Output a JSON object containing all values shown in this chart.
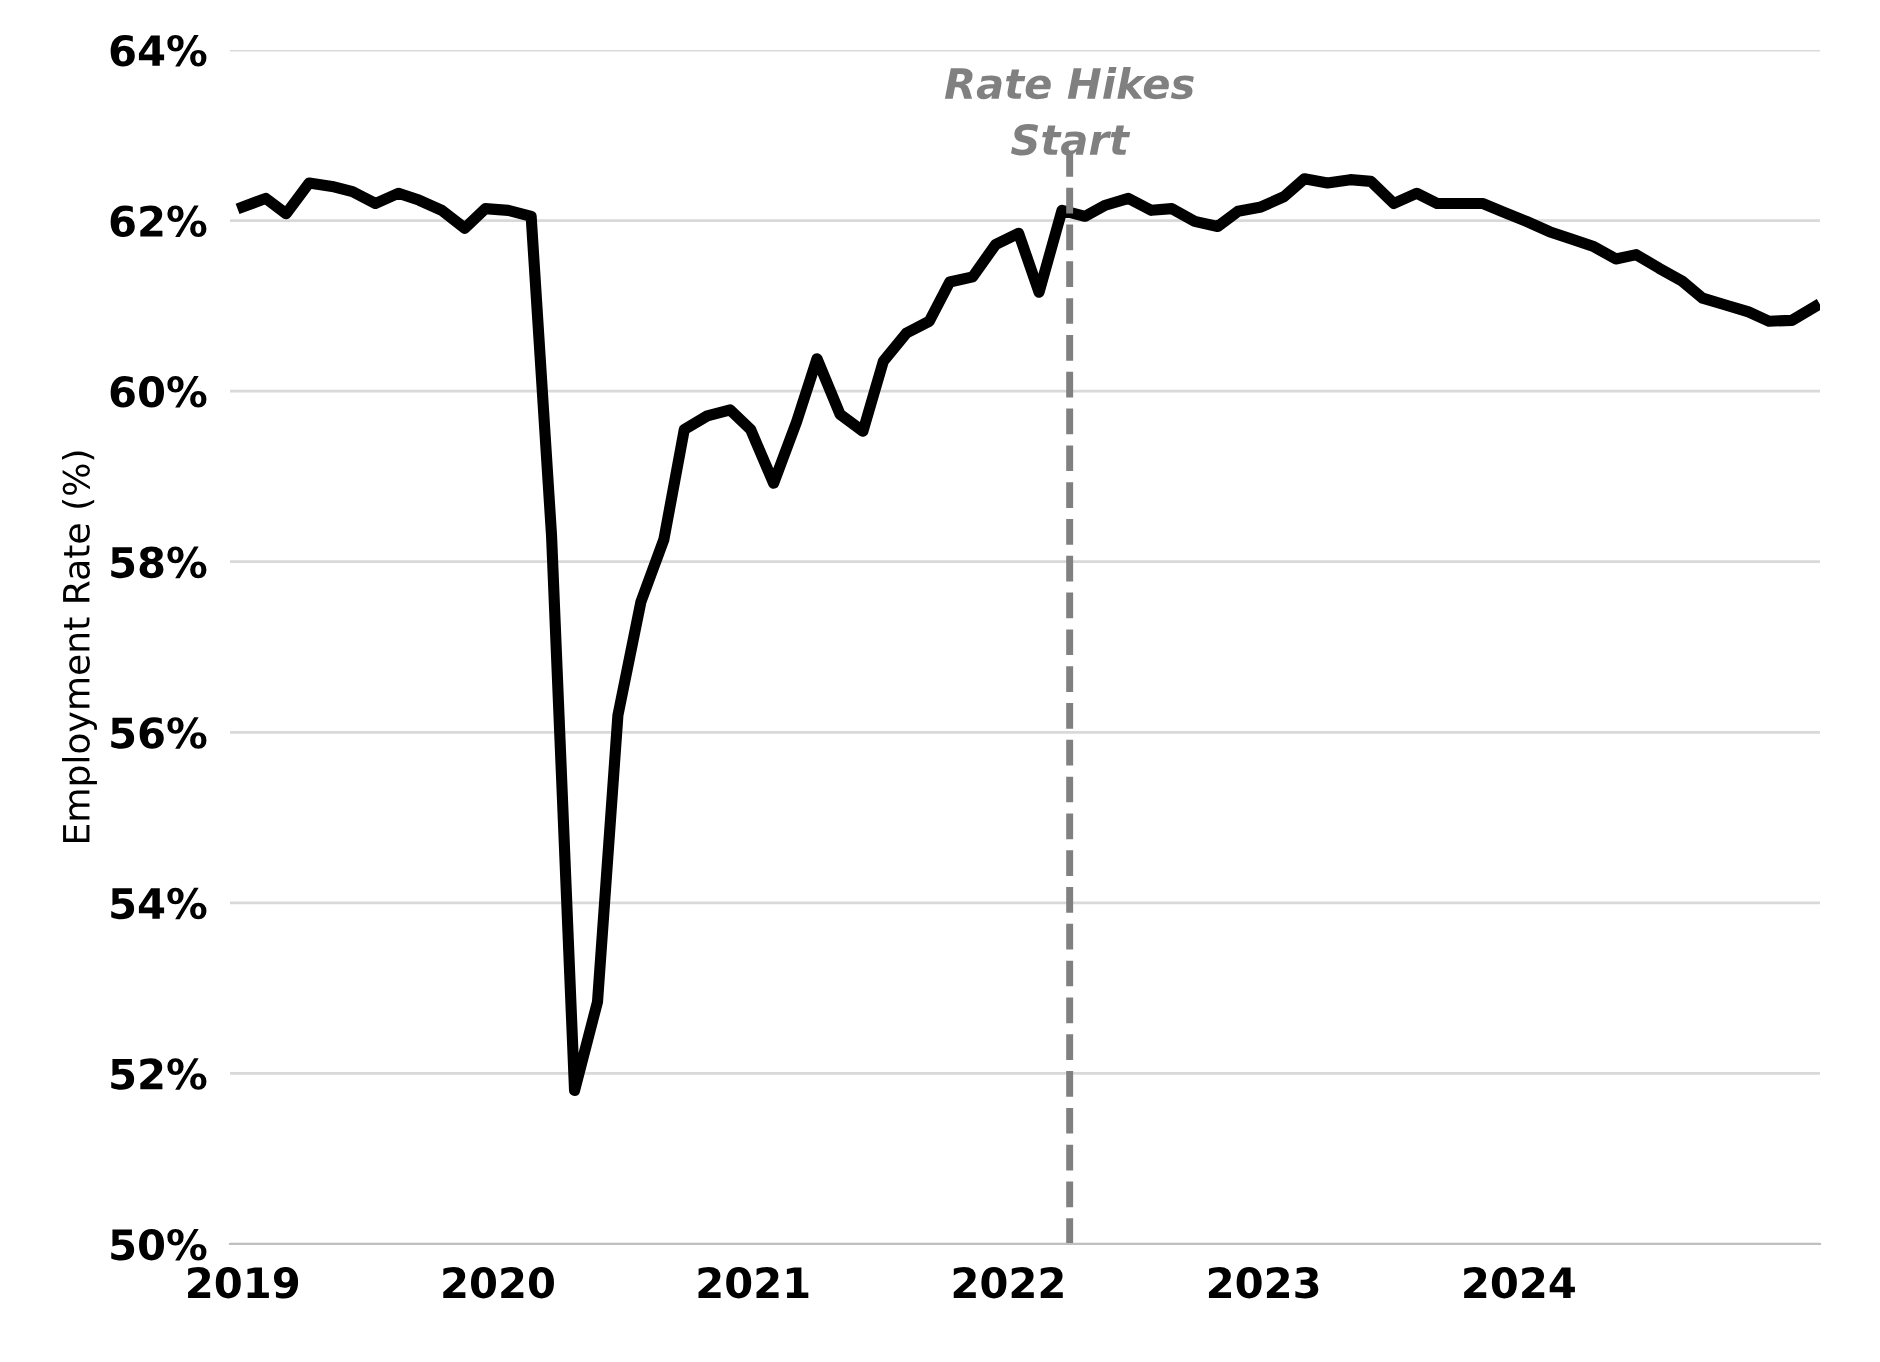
{
  "chart_data": {
    "type": "line",
    "ylabel": "Employment Rate (%)",
    "x": [
      2019.0,
      2019.09,
      2019.17,
      2019.26,
      2019.35,
      2019.43,
      2019.52,
      2019.61,
      2019.69,
      2019.78,
      2019.87,
      2019.95,
      2020.04,
      2020.13,
      2020.21,
      2020.3,
      2020.39,
      2020.47,
      2020.56,
      2020.65,
      2020.73,
      2020.82,
      2020.91,
      2020.99,
      2021.08,
      2021.17,
      2021.25,
      2021.34,
      2021.43,
      2021.51,
      2021.6,
      2021.69,
      2021.77,
      2021.86,
      2021.95,
      2022.04,
      2022.12,
      2022.21,
      2022.3,
      2022.38,
      2022.47,
      2022.56,
      2022.64,
      2022.73,
      2022.82,
      2022.9,
      2022.99,
      2023.08,
      2023.16,
      2023.25,
      2023.34,
      2023.42,
      2023.51,
      2023.6,
      2023.68,
      2023.77,
      2023.86,
      2023.94,
      2024.03,
      2024.12,
      2024.2,
      2024.29,
      2024.38,
      2024.46,
      2024.55,
      2024.64,
      2024.72,
      2024.81,
      2024.9,
      2024.98,
      2025.07,
      2025.16
    ],
    "series": [
      {
        "color": "#000000",
        "values": [
          62.16,
          62.26,
          62.08,
          62.44,
          62.4,
          62.34,
          62.2,
          62.32,
          62.24,
          62.12,
          61.91,
          62.14,
          62.12,
          62.05,
          58.3,
          51.8,
          52.84,
          56.2,
          57.53,
          58.26,
          59.55,
          59.71,
          59.78,
          59.55,
          58.92,
          59.64,
          60.38,
          59.73,
          59.53,
          60.35,
          60.68,
          60.82,
          61.28,
          61.34,
          61.72,
          61.85,
          61.16,
          62.12,
          62.05,
          62.18,
          62.26,
          62.12,
          62.14,
          61.99,
          61.93,
          62.11,
          62.16,
          62.28,
          62.49,
          62.44,
          62.48,
          62.46,
          62.2,
          62.32,
          62.2,
          62.2,
          62.2,
          62.1,
          61.99,
          61.87,
          61.79,
          61.7,
          61.55,
          61.6,
          61.44,
          61.29,
          61.09,
          61.01,
          60.93,
          60.82,
          60.83,
          60.99
        ]
      }
    ],
    "xlim": [
      2018.95,
      2025.18
    ],
    "xticks": [
      2019,
      2020,
      2021,
      2022,
      2023,
      2024
    ],
    "ylim": [
      50,
      64
    ],
    "yticks": [
      {
        "value": 50,
        "label": "50%"
      },
      {
        "value": 52,
        "label": "52%"
      },
      {
        "value": 54,
        "label": "54%"
      },
      {
        "value": 56,
        "label": "56%"
      },
      {
        "value": 58,
        "label": "58%"
      },
      {
        "value": 60,
        "label": "60%"
      },
      {
        "value": 62,
        "label": "62%"
      },
      {
        "value": 64,
        "label": "64%"
      }
    ],
    "grid": "y",
    "marker": "none",
    "line_style": "solid",
    "ref_lines": [
      {
        "axis": "x",
        "value": 2022.24,
        "label": "Rate Hikes\nStart",
        "color": "#808080",
        "line_style": "dashed"
      }
    ]
  }
}
